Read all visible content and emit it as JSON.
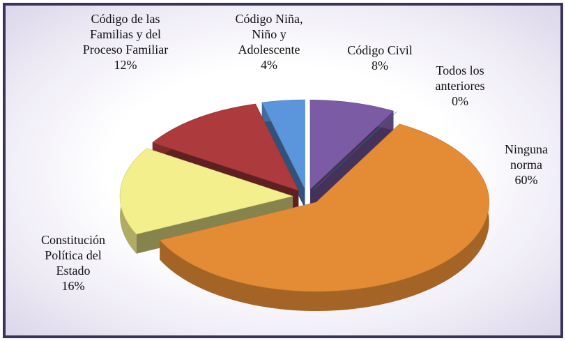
{
  "chart_data": {
    "type": "pie",
    "categories": [
      "Constitución Política del Estado",
      "Código de las Familias y del Proceso Familiar",
      "Código Niña, Niño y Adolescente",
      "Código Civil",
      "Todos los anteriores",
      "Ninguna norma"
    ],
    "values": [
      16,
      12,
      4,
      8,
      0,
      60
    ],
    "value_labels": [
      "16%",
      "12%",
      "4%",
      "8%",
      "0%",
      "60%"
    ],
    "colors": [
      "#f3ef8c",
      "#ad3a3c",
      "#5b95dc",
      "#7b5ba3",
      "#2f8c90",
      "#e48b35"
    ]
  }
}
